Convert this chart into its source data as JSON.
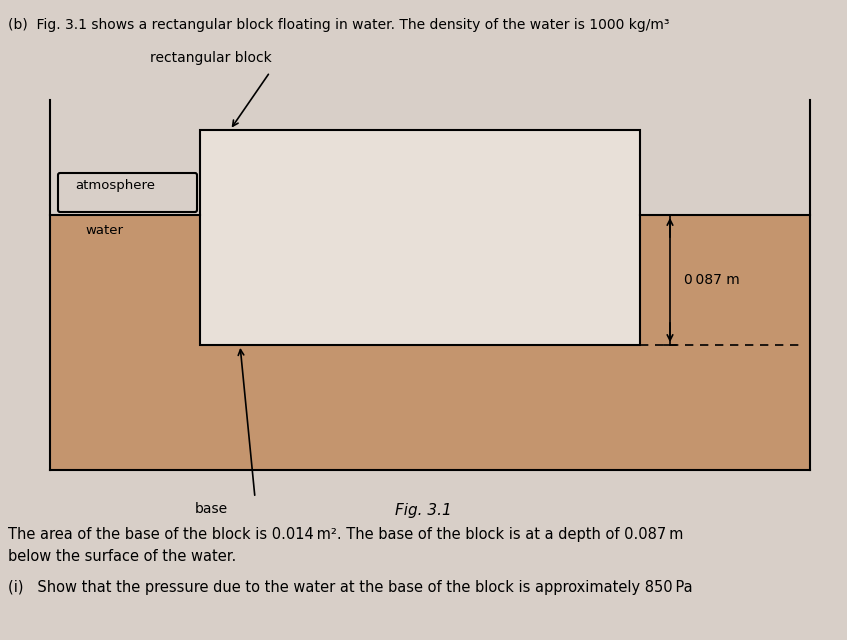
{
  "fig_width": 8.47,
  "fig_height": 6.4,
  "dpi": 100,
  "page_bg": "#d8cfc8",
  "water_color": "#c4956e",
  "block_color": "#e8e0d8",
  "diagram_bg": "#c4956e",
  "right_section_bg": "#ddd5cc",
  "title_line1": "(b)  Fig. 3.1 shows a rectangular block floating in water. The density of the water is 1000 kg/m³",
  "label_rect_block": "rectangular block",
  "label_atmosphere": "atmosphere",
  "label_water": "water",
  "label_base": "base",
  "label_depth": "0 087 m",
  "fig_caption": "Fig. 3.1",
  "text_body": "The area of the base of the block is 0.014 m². The base of the block is at a depth of 0.087 m\nbelow the surface of the water.",
  "text_q": "(i)   Show that the pressure due to the water at the base of the block is approximately 850 Pa",
  "lw": 1.5
}
